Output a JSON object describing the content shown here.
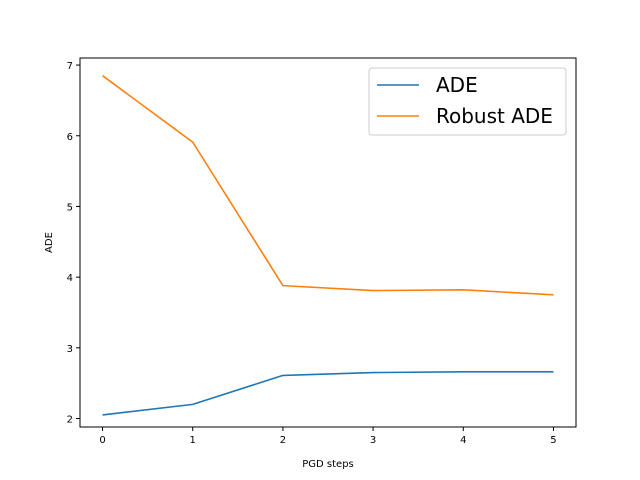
{
  "chart_data": {
    "type": "line",
    "title": "",
    "xlabel": "PGD steps",
    "ylabel": "ADE",
    "x": [
      0,
      1,
      2,
      3,
      4,
      5
    ],
    "xlim": [
      -0.25,
      5.25
    ],
    "ylim": [
      1.88,
      7.1
    ],
    "xticks": [
      0,
      1,
      2,
      3,
      4,
      5
    ],
    "yticks": [
      2,
      3,
      4,
      5,
      6,
      7
    ],
    "grid": false,
    "legend_position": "top-right",
    "series": [
      {
        "name": "ADE",
        "color": "#1f77b4",
        "values": [
          2.05,
          2.2,
          2.61,
          2.65,
          2.66,
          2.66
        ]
      },
      {
        "name": "Robust ADE",
        "color": "#ff7f0e",
        "values": [
          6.85,
          5.91,
          3.88,
          3.81,
          3.82,
          3.75
        ]
      }
    ]
  }
}
